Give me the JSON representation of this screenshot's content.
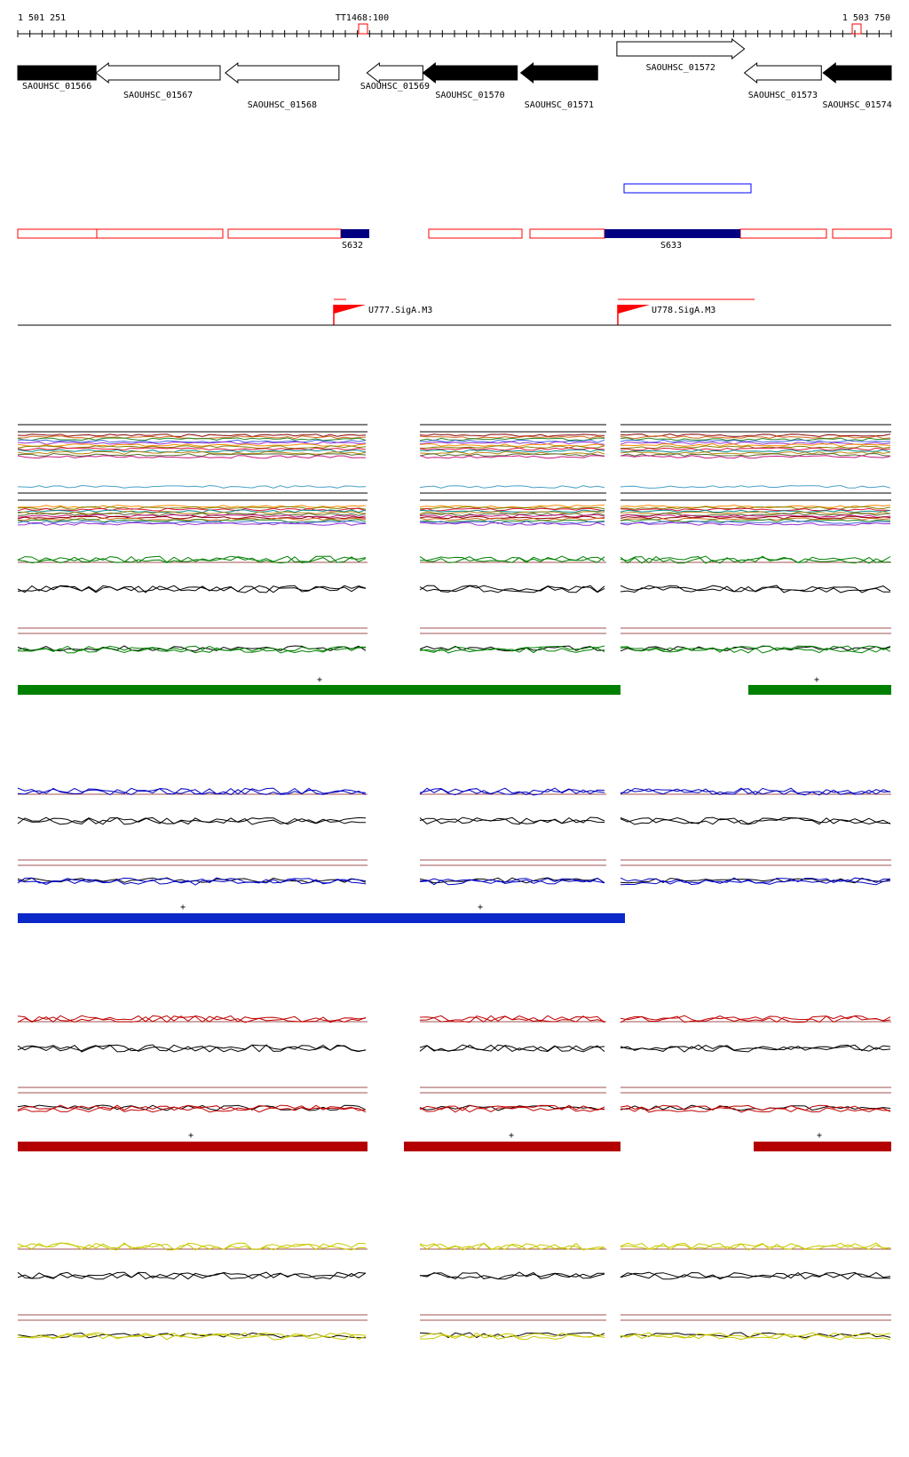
{
  "ruler": {
    "start_label": "1 501 251",
    "end_label": "1 503 750",
    "terminator_label": "TT1468:100",
    "start_bp": 1501251,
    "end_bp": 1503750
  },
  "genes": [
    {
      "label": "SAOUHSC_01566",
      "start_bp": 1501251,
      "end_bp": 1501475,
      "strand": "+",
      "fill": "#000000"
    },
    {
      "label": "SAOUHSC_01567",
      "start_bp": 1501475,
      "end_bp": 1501830,
      "strand": "-",
      "fill": "#ffffff"
    },
    {
      "label": "SAOUHSC_01568",
      "start_bp": 1501845,
      "end_bp": 1502170,
      "strand": "-",
      "fill": "#ffffff"
    },
    {
      "label": "SAOUHSC_01569",
      "start_bp": 1502250,
      "end_bp": 1502410,
      "strand": "-",
      "fill": "#ffffff"
    },
    {
      "label": "SAOUHSC_01570",
      "start_bp": 1502410,
      "end_bp": 1502680,
      "strand": "-",
      "fill": "#000000"
    },
    {
      "label": "SAOUHSC_01571",
      "start_bp": 1502690,
      "end_bp": 1502910,
      "strand": "-",
      "fill": "#000000"
    },
    {
      "label": "SAOUHSC_01572",
      "start_bp": 1502965,
      "end_bp": 1503330,
      "strand": "+",
      "fill": "#ffffff"
    },
    {
      "label": "SAOUHSC_01573",
      "start_bp": 1503330,
      "end_bp": 1503550,
      "strand": "-",
      "fill": "#ffffff"
    },
    {
      "label": "SAOUHSC_01574",
      "start_bp": 1503555,
      "end_bp": 1503750,
      "strand": "-",
      "fill": "#000000"
    }
  ],
  "segments": [
    {
      "label": "S632",
      "start_bp": 1502170,
      "end_bp": 1502250,
      "fill": "#000080"
    },
    {
      "label": "S633",
      "start_bp": 1502910,
      "end_bp": 1503300,
      "fill": "#000080"
    }
  ],
  "promoters": [
    {
      "label": "U777.SigA.M3",
      "pos_bp": 1502160
    },
    {
      "label": "U778.SigA.M3",
      "pos_bp": 1502965
    }
  ],
  "conditions": [
    {
      "name": "green",
      "color": "#008000",
      "plus_labels": [
        "+",
        "+"
      ]
    },
    {
      "name": "blue",
      "color": "#0000c0",
      "plus_labels": [
        "+",
        "+"
      ]
    },
    {
      "name": "red",
      "color": "#c00000",
      "plus_labels": [
        "+",
        "+",
        "+"
      ]
    },
    {
      "name": "yellow",
      "color": "#c8c800",
      "plus_labels": []
    }
  ],
  "colors": {
    "outline_red": "#ff0000",
    "navy": "#000080",
    "blue_outline": "#0000ff",
    "threshold": "#a05050"
  }
}
